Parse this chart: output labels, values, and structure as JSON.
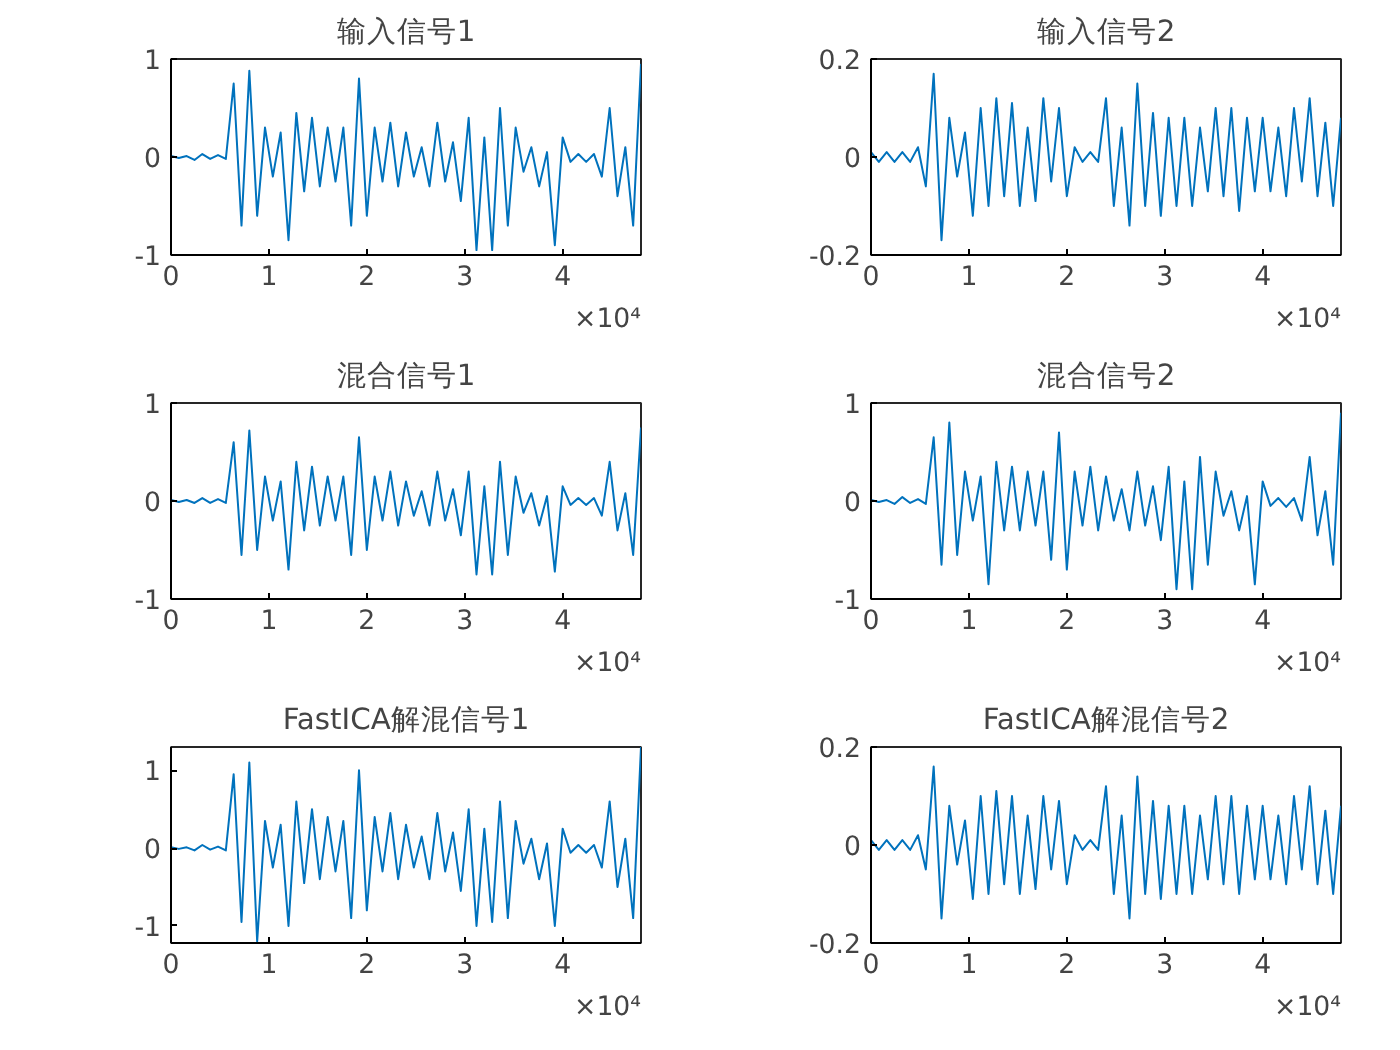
{
  "chart_data": [
    {
      "type": "line",
      "title": "输入信号1",
      "xlim": [
        0,
        4.8
      ],
      "xticks": [
        0,
        1,
        2,
        3,
        4
      ],
      "ylim": [
        -1,
        1
      ],
      "yticks": [
        -1,
        0,
        1
      ],
      "grid": false,
      "annotations": [
        "×10⁴"
      ],
      "x": [
        0,
        0.08,
        0.16,
        0.24,
        0.32,
        0.4,
        0.48,
        0.56,
        0.64,
        0.72,
        0.8,
        0.88,
        0.96,
        1.04,
        1.12,
        1.2,
        1.28,
        1.36,
        1.44,
        1.52,
        1.6,
        1.68,
        1.76,
        1.84,
        1.92,
        2.0,
        2.08,
        2.16,
        2.24,
        2.32,
        2.4,
        2.48,
        2.56,
        2.64,
        2.72,
        2.8,
        2.88,
        2.96,
        3.04,
        3.12,
        3.2,
        3.28,
        3.36,
        3.44,
        3.52,
        3.6,
        3.68,
        3.76,
        3.84,
        3.92,
        4.0,
        4.08,
        4.16,
        4.24,
        4.32,
        4.4,
        4.48,
        4.56,
        4.64,
        4.72,
        4.8
      ],
      "series": [
        {
          "color": "#0072bd",
          "values": [
            0.01,
            -0.01,
            0.01,
            -0.03,
            0.03,
            -0.02,
            0.02,
            -0.02,
            0.75,
            -0.7,
            0.88,
            -0.6,
            0.3,
            -0.2,
            0.25,
            -0.85,
            0.45,
            -0.35,
            0.4,
            -0.3,
            0.3,
            -0.25,
            0.3,
            -0.7,
            0.8,
            -0.6,
            0.3,
            -0.25,
            0.35,
            -0.3,
            0.25,
            -0.2,
            0.1,
            -0.3,
            0.35,
            -0.25,
            0.15,
            -0.45,
            0.4,
            -0.95,
            0.2,
            -0.95,
            0.5,
            -0.7,
            0.3,
            -0.15,
            0.1,
            -0.3,
            0.05,
            -0.9,
            0.2,
            -0.05,
            0.03,
            -0.05,
            0.03,
            -0.2,
            0.5,
            -0.4,
            0.1,
            -0.7,
            0.95
          ]
        }
      ]
    },
    {
      "type": "line",
      "title": "输入信号2",
      "xlim": [
        0,
        4.8
      ],
      "xticks": [
        0,
        1,
        2,
        3,
        4
      ],
      "ylim": [
        -0.2,
        0.2
      ],
      "yticks": [
        -0.2,
        0,
        0.2
      ],
      "grid": false,
      "annotations": [
        "×10⁴"
      ],
      "x": [
        0,
        0.08,
        0.16,
        0.24,
        0.32,
        0.4,
        0.48,
        0.56,
        0.64,
        0.72,
        0.8,
        0.88,
        0.96,
        1.04,
        1.12,
        1.2,
        1.28,
        1.36,
        1.44,
        1.52,
        1.6,
        1.68,
        1.76,
        1.84,
        1.92,
        2.0,
        2.08,
        2.16,
        2.24,
        2.32,
        2.4,
        2.48,
        2.56,
        2.64,
        2.72,
        2.8,
        2.88,
        2.96,
        3.04,
        3.12,
        3.2,
        3.28,
        3.36,
        3.44,
        3.52,
        3.6,
        3.68,
        3.76,
        3.84,
        3.92,
        4.0,
        4.08,
        4.16,
        4.24,
        4.32,
        4.4,
        4.48,
        4.56,
        4.64,
        4.72,
        4.8
      ],
      "series": [
        {
          "color": "#0072bd",
          "values": [
            0.01,
            -0.01,
            0.01,
            -0.01,
            0.01,
            -0.01,
            0.02,
            -0.06,
            0.17,
            -0.17,
            0.08,
            -0.04,
            0.05,
            -0.12,
            0.1,
            -0.1,
            0.12,
            -0.08,
            0.11,
            -0.1,
            0.06,
            -0.09,
            0.12,
            -0.05,
            0.1,
            -0.08,
            0.02,
            -0.01,
            0.01,
            -0.01,
            0.12,
            -0.1,
            0.06,
            -0.14,
            0.15,
            -0.1,
            0.09,
            -0.12,
            0.08,
            -0.1,
            0.08,
            -0.1,
            0.06,
            -0.07,
            0.1,
            -0.08,
            0.1,
            -0.11,
            0.08,
            -0.07,
            0.08,
            -0.07,
            0.06,
            -0.08,
            0.1,
            -0.05,
            0.12,
            -0.08,
            0.07,
            -0.1,
            0.08
          ]
        }
      ]
    },
    {
      "type": "line",
      "title": "混合信号1",
      "xlim": [
        0,
        4.8
      ],
      "xticks": [
        0,
        1,
        2,
        3,
        4
      ],
      "ylim": [
        -1,
        1
      ],
      "yticks": [
        -1,
        0,
        1
      ],
      "grid": false,
      "annotations": [
        "×10⁴"
      ],
      "x": [
        0,
        0.08,
        0.16,
        0.24,
        0.32,
        0.4,
        0.48,
        0.56,
        0.64,
        0.72,
        0.8,
        0.88,
        0.96,
        1.04,
        1.12,
        1.2,
        1.28,
        1.36,
        1.44,
        1.52,
        1.6,
        1.68,
        1.76,
        1.84,
        1.92,
        2.0,
        2.08,
        2.16,
        2.24,
        2.32,
        2.4,
        2.48,
        2.56,
        2.64,
        2.72,
        2.8,
        2.88,
        2.96,
        3.04,
        3.12,
        3.2,
        3.28,
        3.36,
        3.44,
        3.52,
        3.6,
        3.68,
        3.76,
        3.84,
        3.92,
        4.0,
        4.08,
        4.16,
        4.24,
        4.32,
        4.4,
        4.48,
        4.56,
        4.64,
        4.72,
        4.8
      ],
      "series": [
        {
          "color": "#0072bd",
          "values": [
            0.01,
            -0.01,
            0.01,
            -0.02,
            0.03,
            -0.02,
            0.02,
            -0.02,
            0.6,
            -0.55,
            0.72,
            -0.5,
            0.25,
            -0.2,
            0.2,
            -0.7,
            0.4,
            -0.3,
            0.35,
            -0.25,
            0.25,
            -0.2,
            0.25,
            -0.55,
            0.65,
            -0.5,
            0.25,
            -0.2,
            0.3,
            -0.25,
            0.2,
            -0.15,
            0.1,
            -0.25,
            0.3,
            -0.2,
            0.12,
            -0.35,
            0.3,
            -0.75,
            0.15,
            -0.75,
            0.4,
            -0.55,
            0.25,
            -0.12,
            0.08,
            -0.25,
            0.05,
            -0.72,
            0.15,
            -0.04,
            0.03,
            -0.04,
            0.03,
            -0.15,
            0.4,
            -0.3,
            0.08,
            -0.55,
            0.75
          ]
        }
      ]
    },
    {
      "type": "line",
      "title": "混合信号2",
      "xlim": [
        0,
        4.8
      ],
      "xticks": [
        0,
        1,
        2,
        3,
        4
      ],
      "ylim": [
        -1,
        1
      ],
      "yticks": [
        -1,
        0,
        1
      ],
      "grid": false,
      "annotations": [
        "×10⁴"
      ],
      "x": [
        0,
        0.08,
        0.16,
        0.24,
        0.32,
        0.4,
        0.48,
        0.56,
        0.64,
        0.72,
        0.8,
        0.88,
        0.96,
        1.04,
        1.12,
        1.2,
        1.28,
        1.36,
        1.44,
        1.52,
        1.6,
        1.68,
        1.76,
        1.84,
        1.92,
        2.0,
        2.08,
        2.16,
        2.24,
        2.32,
        2.4,
        2.48,
        2.56,
        2.64,
        2.72,
        2.8,
        2.88,
        2.96,
        3.04,
        3.12,
        3.2,
        3.28,
        3.36,
        3.44,
        3.52,
        3.6,
        3.68,
        3.76,
        3.84,
        3.92,
        4.0,
        4.08,
        4.16,
        4.24,
        4.32,
        4.4,
        4.48,
        4.56,
        4.64,
        4.72,
        4.8
      ],
      "series": [
        {
          "color": "#0072bd",
          "values": [
            0.01,
            -0.01,
            0.01,
            -0.03,
            0.04,
            -0.02,
            0.02,
            -0.03,
            0.65,
            -0.65,
            0.8,
            -0.55,
            0.3,
            -0.2,
            0.25,
            -0.85,
            0.4,
            -0.3,
            0.35,
            -0.3,
            0.3,
            -0.25,
            0.3,
            -0.6,
            0.7,
            -0.7,
            0.3,
            -0.25,
            0.35,
            -0.3,
            0.25,
            -0.2,
            0.12,
            -0.3,
            0.3,
            -0.25,
            0.15,
            -0.4,
            0.35,
            -0.9,
            0.2,
            -0.9,
            0.45,
            -0.65,
            0.3,
            -0.15,
            0.1,
            -0.3,
            0.05,
            -0.85,
            0.2,
            -0.05,
            0.03,
            -0.06,
            0.03,
            -0.2,
            0.45,
            -0.35,
            0.1,
            -0.65,
            0.9
          ]
        }
      ]
    },
    {
      "type": "line",
      "title": "FastICA解混信号1",
      "xlim": [
        0,
        4.8
      ],
      "xticks": [
        0,
        1,
        2,
        3,
        4
      ],
      "ylim": [
        -1.22,
        1.3
      ],
      "yticks": [
        -1,
        0,
        1
      ],
      "grid": false,
      "annotations": [
        "×10⁴"
      ],
      "x": [
        0,
        0.08,
        0.16,
        0.24,
        0.32,
        0.4,
        0.48,
        0.56,
        0.64,
        0.72,
        0.8,
        0.88,
        0.96,
        1.04,
        1.12,
        1.2,
        1.28,
        1.36,
        1.44,
        1.52,
        1.6,
        1.68,
        1.76,
        1.84,
        1.92,
        2.0,
        2.08,
        2.16,
        2.24,
        2.32,
        2.4,
        2.48,
        2.56,
        2.64,
        2.72,
        2.8,
        2.88,
        2.96,
        3.04,
        3.12,
        3.2,
        3.28,
        3.36,
        3.44,
        3.52,
        3.6,
        3.68,
        3.76,
        3.84,
        3.92,
        4.0,
        4.08,
        4.16,
        4.24,
        4.32,
        4.4,
        4.48,
        4.56,
        4.64,
        4.72,
        4.8
      ],
      "series": [
        {
          "color": "#0072bd",
          "values": [
            0.01,
            -0.01,
            0.01,
            -0.03,
            0.04,
            -0.02,
            0.02,
            -0.03,
            0.95,
            -0.95,
            1.1,
            -1.2,
            0.35,
            -0.25,
            0.3,
            -1.0,
            0.6,
            -0.45,
            0.5,
            -0.4,
            0.4,
            -0.3,
            0.35,
            -0.9,
            1.0,
            -0.8,
            0.4,
            -0.3,
            0.45,
            -0.4,
            0.3,
            -0.25,
            0.15,
            -0.4,
            0.45,
            -0.3,
            0.2,
            -0.55,
            0.5,
            -1.0,
            0.25,
            -0.95,
            0.6,
            -0.9,
            0.35,
            -0.2,
            0.12,
            -0.4,
            0.06,
            -1.0,
            0.25,
            -0.06,
            0.04,
            -0.06,
            0.04,
            -0.25,
            0.6,
            -0.5,
            0.12,
            -0.9,
            1.3
          ]
        }
      ]
    },
    {
      "type": "line",
      "title": "FastICA解混信号2",
      "xlim": [
        0,
        4.8
      ],
      "xticks": [
        0,
        1,
        2,
        3,
        4
      ],
      "ylim": [
        -0.2,
        0.2
      ],
      "yticks": [
        -0.2,
        0,
        0.2
      ],
      "grid": false,
      "annotations": [
        "×10⁴"
      ],
      "x": [
        0,
        0.08,
        0.16,
        0.24,
        0.32,
        0.4,
        0.48,
        0.56,
        0.64,
        0.72,
        0.8,
        0.88,
        0.96,
        1.04,
        1.12,
        1.2,
        1.28,
        1.36,
        1.44,
        1.52,
        1.6,
        1.68,
        1.76,
        1.84,
        1.92,
        2.0,
        2.08,
        2.16,
        2.24,
        2.32,
        2.4,
        2.48,
        2.56,
        2.64,
        2.72,
        2.8,
        2.88,
        2.96,
        3.04,
        3.12,
        3.2,
        3.28,
        3.36,
        3.44,
        3.52,
        3.6,
        3.68,
        3.76,
        3.84,
        3.92,
        4.0,
        4.08,
        4.16,
        4.24,
        4.32,
        4.4,
        4.48,
        4.56,
        4.64,
        4.72,
        4.8
      ],
      "series": [
        {
          "color": "#0072bd",
          "values": [
            0.01,
            -0.01,
            0.01,
            -0.01,
            0.01,
            -0.01,
            0.02,
            -0.05,
            0.16,
            -0.15,
            0.08,
            -0.04,
            0.05,
            -0.11,
            0.1,
            -0.1,
            0.11,
            -0.08,
            0.1,
            -0.1,
            0.06,
            -0.09,
            0.1,
            -0.05,
            0.09,
            -0.08,
            0.02,
            -0.01,
            0.01,
            -0.01,
            0.12,
            -0.1,
            0.06,
            -0.15,
            0.14,
            -0.1,
            0.09,
            -0.11,
            0.08,
            -0.1,
            0.08,
            -0.1,
            0.06,
            -0.07,
            0.1,
            -0.08,
            0.1,
            -0.1,
            0.08,
            -0.07,
            0.08,
            -0.07,
            0.06,
            -0.08,
            0.1,
            -0.05,
            0.12,
            -0.08,
            0.07,
            -0.1,
            0.08
          ]
        }
      ]
    }
  ]
}
